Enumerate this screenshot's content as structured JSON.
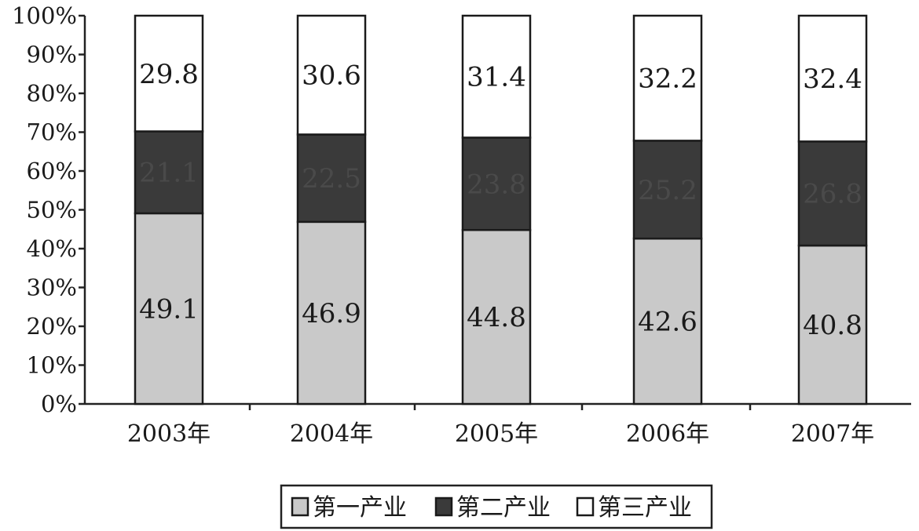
{
  "chart_data": {
    "type": "bar",
    "stacked": true,
    "categories": [
      "2003年",
      "2004年",
      "2005年",
      "2006年",
      "2007年"
    ],
    "series": [
      {
        "name": "第一产业",
        "values": [
          49.1,
          46.9,
          44.8,
          42.6,
          40.8
        ],
        "labels": [
          "49.1",
          "46.9",
          "44.8",
          "42.6",
          "40.8"
        ],
        "color": "#c9c9c9"
      },
      {
        "name": "第二产业",
        "values": [
          21.1,
          22.5,
          23.8,
          25.2,
          26.8
        ],
        "labels": [
          "21.1",
          "22.5",
          "23.8",
          "25.2",
          "26.8"
        ],
        "color": "#3a3a3a"
      },
      {
        "name": "第三产业",
        "values": [
          29.8,
          30.6,
          31.4,
          32.2,
          32.4
        ],
        "labels": [
          "29.8",
          "30.6",
          "31.4",
          "32.2",
          "32.4"
        ],
        "color": "#ffffff"
      }
    ],
    "yticks": [
      "0%",
      "10%",
      "20%",
      "30%",
      "40%",
      "50%",
      "60%",
      "70%",
      "80%",
      "90%",
      "100%"
    ],
    "ylim": [
      0,
      100
    ],
    "xlabel": "",
    "ylabel": "",
    "title": "",
    "grid": false,
    "legend_position": "bottom"
  }
}
